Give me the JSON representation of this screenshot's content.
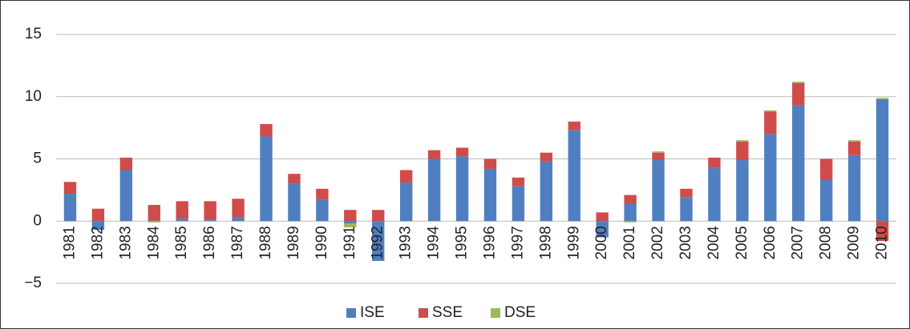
{
  "chart_data": {
    "type": "stacked_bar",
    "categories": [
      "1981",
      "1982",
      "1983",
      "1984",
      "1985",
      "1986",
      "1987",
      "1988",
      "1989",
      "1990",
      "1991",
      "1992",
      "1993",
      "1994",
      "1995",
      "1996",
      "1997",
      "1998",
      "1999",
      "2000",
      "2001",
      "2002",
      "2003",
      "2004",
      "2005",
      "2006",
      "2007",
      "2008",
      "2009",
      "2010"
    ],
    "series": [
      {
        "name": "ISE",
        "color": "#4f7fc0",
        "values": [
          2.2,
          -0.7,
          4.1,
          0.05,
          0.2,
          0.1,
          0.3,
          6.8,
          3.0,
          1.7,
          -0.2,
          -3.2,
          3.1,
          5.0,
          5.2,
          4.2,
          2.8,
          4.8,
          7.3,
          -1.3,
          1.4,
          4.9,
          1.9,
          4.3,
          4.9,
          7.0,
          9.3,
          3.3,
          5.3,
          9.8
        ]
      },
      {
        "name": "SSE",
        "color": "#cf4c4a",
        "values": [
          0.95,
          1.0,
          1.0,
          1.25,
          1.4,
          1.5,
          1.5,
          1.0,
          0.8,
          0.9,
          0.9,
          0.9,
          1.0,
          0.7,
          0.7,
          0.8,
          0.7,
          0.7,
          0.7,
          0.7,
          0.7,
          0.6,
          0.7,
          0.8,
          1.5,
          1.8,
          1.8,
          1.7,
          1.1,
          -1.6
        ]
      },
      {
        "name": "DSE",
        "color": "#9bbb59",
        "values": [
          0,
          0,
          0,
          -0.1,
          0,
          0,
          0,
          0,
          0,
          0,
          -0.3,
          0,
          0,
          0,
          0,
          0,
          0,
          0,
          0,
          0,
          -0.1,
          0.1,
          0,
          0,
          0.1,
          0.1,
          0.1,
          0,
          0.1,
          0.1
        ]
      }
    ],
    "ylim": [
      -5,
      15
    ],
    "yticks": [
      {
        "value": -5,
        "label": "−5"
      },
      0,
      5,
      10,
      15
    ],
    "grid": true,
    "legend": "bottom"
  }
}
